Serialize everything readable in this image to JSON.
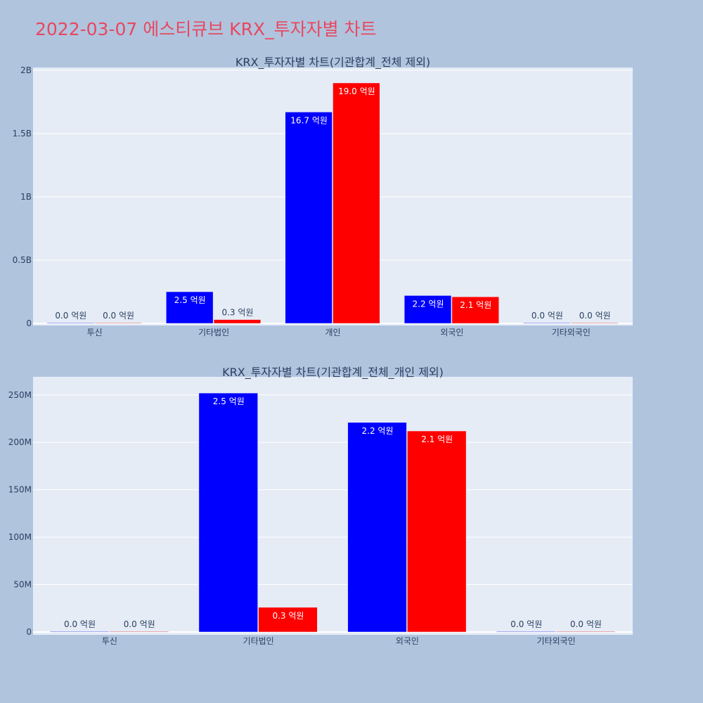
{
  "page": {
    "title": "2022-03-07 에스티큐브 KRX_투자자별 차트"
  },
  "colors": {
    "background": "#b0c4de",
    "plot_background": "#e5ecf6",
    "grid": "#ffffff",
    "title": "#e8485f",
    "text": "#2a3f5f",
    "series_a": "#0000ff",
    "series_b": "#ff0000"
  },
  "chart_data": [
    {
      "type": "bar",
      "title": "KRX_투자자별 차트(기관합계_전체 제외)",
      "categories": [
        "투신",
        "기타법인",
        "개인",
        "외국인",
        "기타외국인"
      ],
      "series": [
        {
          "color": "#0000ff",
          "values": [
            0,
            250000000,
            1670000000,
            220000000,
            0
          ],
          "labels": [
            "0.0 억원",
            "2.5 억원",
            "16.7 억원",
            "2.2 억원",
            "0.0 억원"
          ]
        },
        {
          "color": "#ff0000",
          "values": [
            0,
            30000000,
            1900000000,
            210000000,
            0
          ],
          "labels": [
            "0.0 억원",
            "0.3 억원",
            "19.0 억원",
            "2.1 억원",
            "0.0 억원"
          ]
        }
      ],
      "ylim": [
        0,
        2000000000
      ],
      "yticks": [
        0,
        500000000,
        1000000000,
        1500000000,
        2000000000
      ],
      "ytick_labels": [
        "0",
        "0.5B",
        "1B",
        "1.5B",
        "2B"
      ],
      "grid": true
    },
    {
      "type": "bar",
      "title": "KRX_투자자별 차트(기관합계_전체_개인 제외)",
      "categories": [
        "투신",
        "기타법인",
        "외국인",
        "기타외국인"
      ],
      "series": [
        {
          "color": "#0000ff",
          "values": [
            0,
            252000000,
            221000000,
            0
          ],
          "labels": [
            "0.0 억원",
            "2.5 억원",
            "2.2 억원",
            "0.0 억원"
          ]
        },
        {
          "color": "#ff0000",
          "values": [
            0,
            26000000,
            212000000,
            0
          ],
          "labels": [
            "0.0 억원",
            "0.3 억원",
            "2.1 억원",
            "0.0 억원"
          ]
        }
      ],
      "ylim": [
        0,
        270000000
      ],
      "yticks": [
        0,
        50000000,
        100000000,
        150000000,
        200000000,
        250000000
      ],
      "ytick_labels": [
        "0",
        "50M",
        "100M",
        "150M",
        "200M",
        "250M"
      ],
      "grid": true
    }
  ]
}
